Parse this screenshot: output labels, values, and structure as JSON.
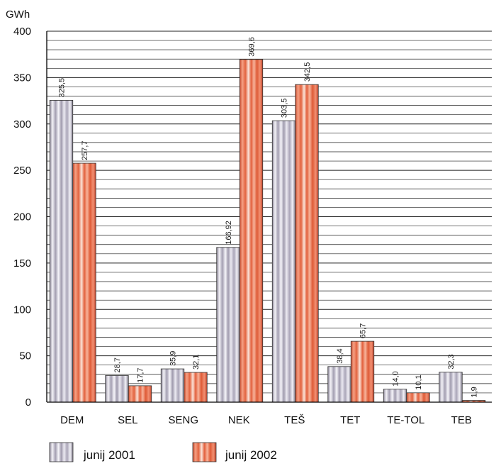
{
  "chart_data": {
    "type": "bar",
    "ylabel": "GWh",
    "ylim": [
      0,
      400
    ],
    "yticks": [
      "0",
      "50",
      "100",
      "150",
      "200",
      "250",
      "300",
      "350",
      "400"
    ],
    "categories": [
      "DEM",
      "SEL",
      "SENG",
      "NEK",
      "TEŠ",
      "TET",
      "TE-TOL",
      "TEB"
    ],
    "series": [
      {
        "name": "junij 2001",
        "values": [
          325.5,
          28.7,
          35.9,
          166.92,
          303.5,
          38.4,
          14.0,
          32.3
        ],
        "labels": [
          "325,5",
          "28,7",
          "35,9",
          "166,92",
          "303,5",
          "38,4",
          "14,0",
          "32,3"
        ],
        "color": "#b9b4c6"
      },
      {
        "name": "junij 2002",
        "values": [
          257.7,
          17.7,
          32.1,
          369.6,
          342.5,
          65.7,
          10.1,
          1.9
        ],
        "labels": [
          "257,7",
          "17,7",
          "32,1",
          "369,6",
          "342,5",
          "65,7",
          "10,1",
          "1,9"
        ],
        "color": "#e2674a"
      }
    ],
    "grid": true,
    "legend": "bottom"
  }
}
